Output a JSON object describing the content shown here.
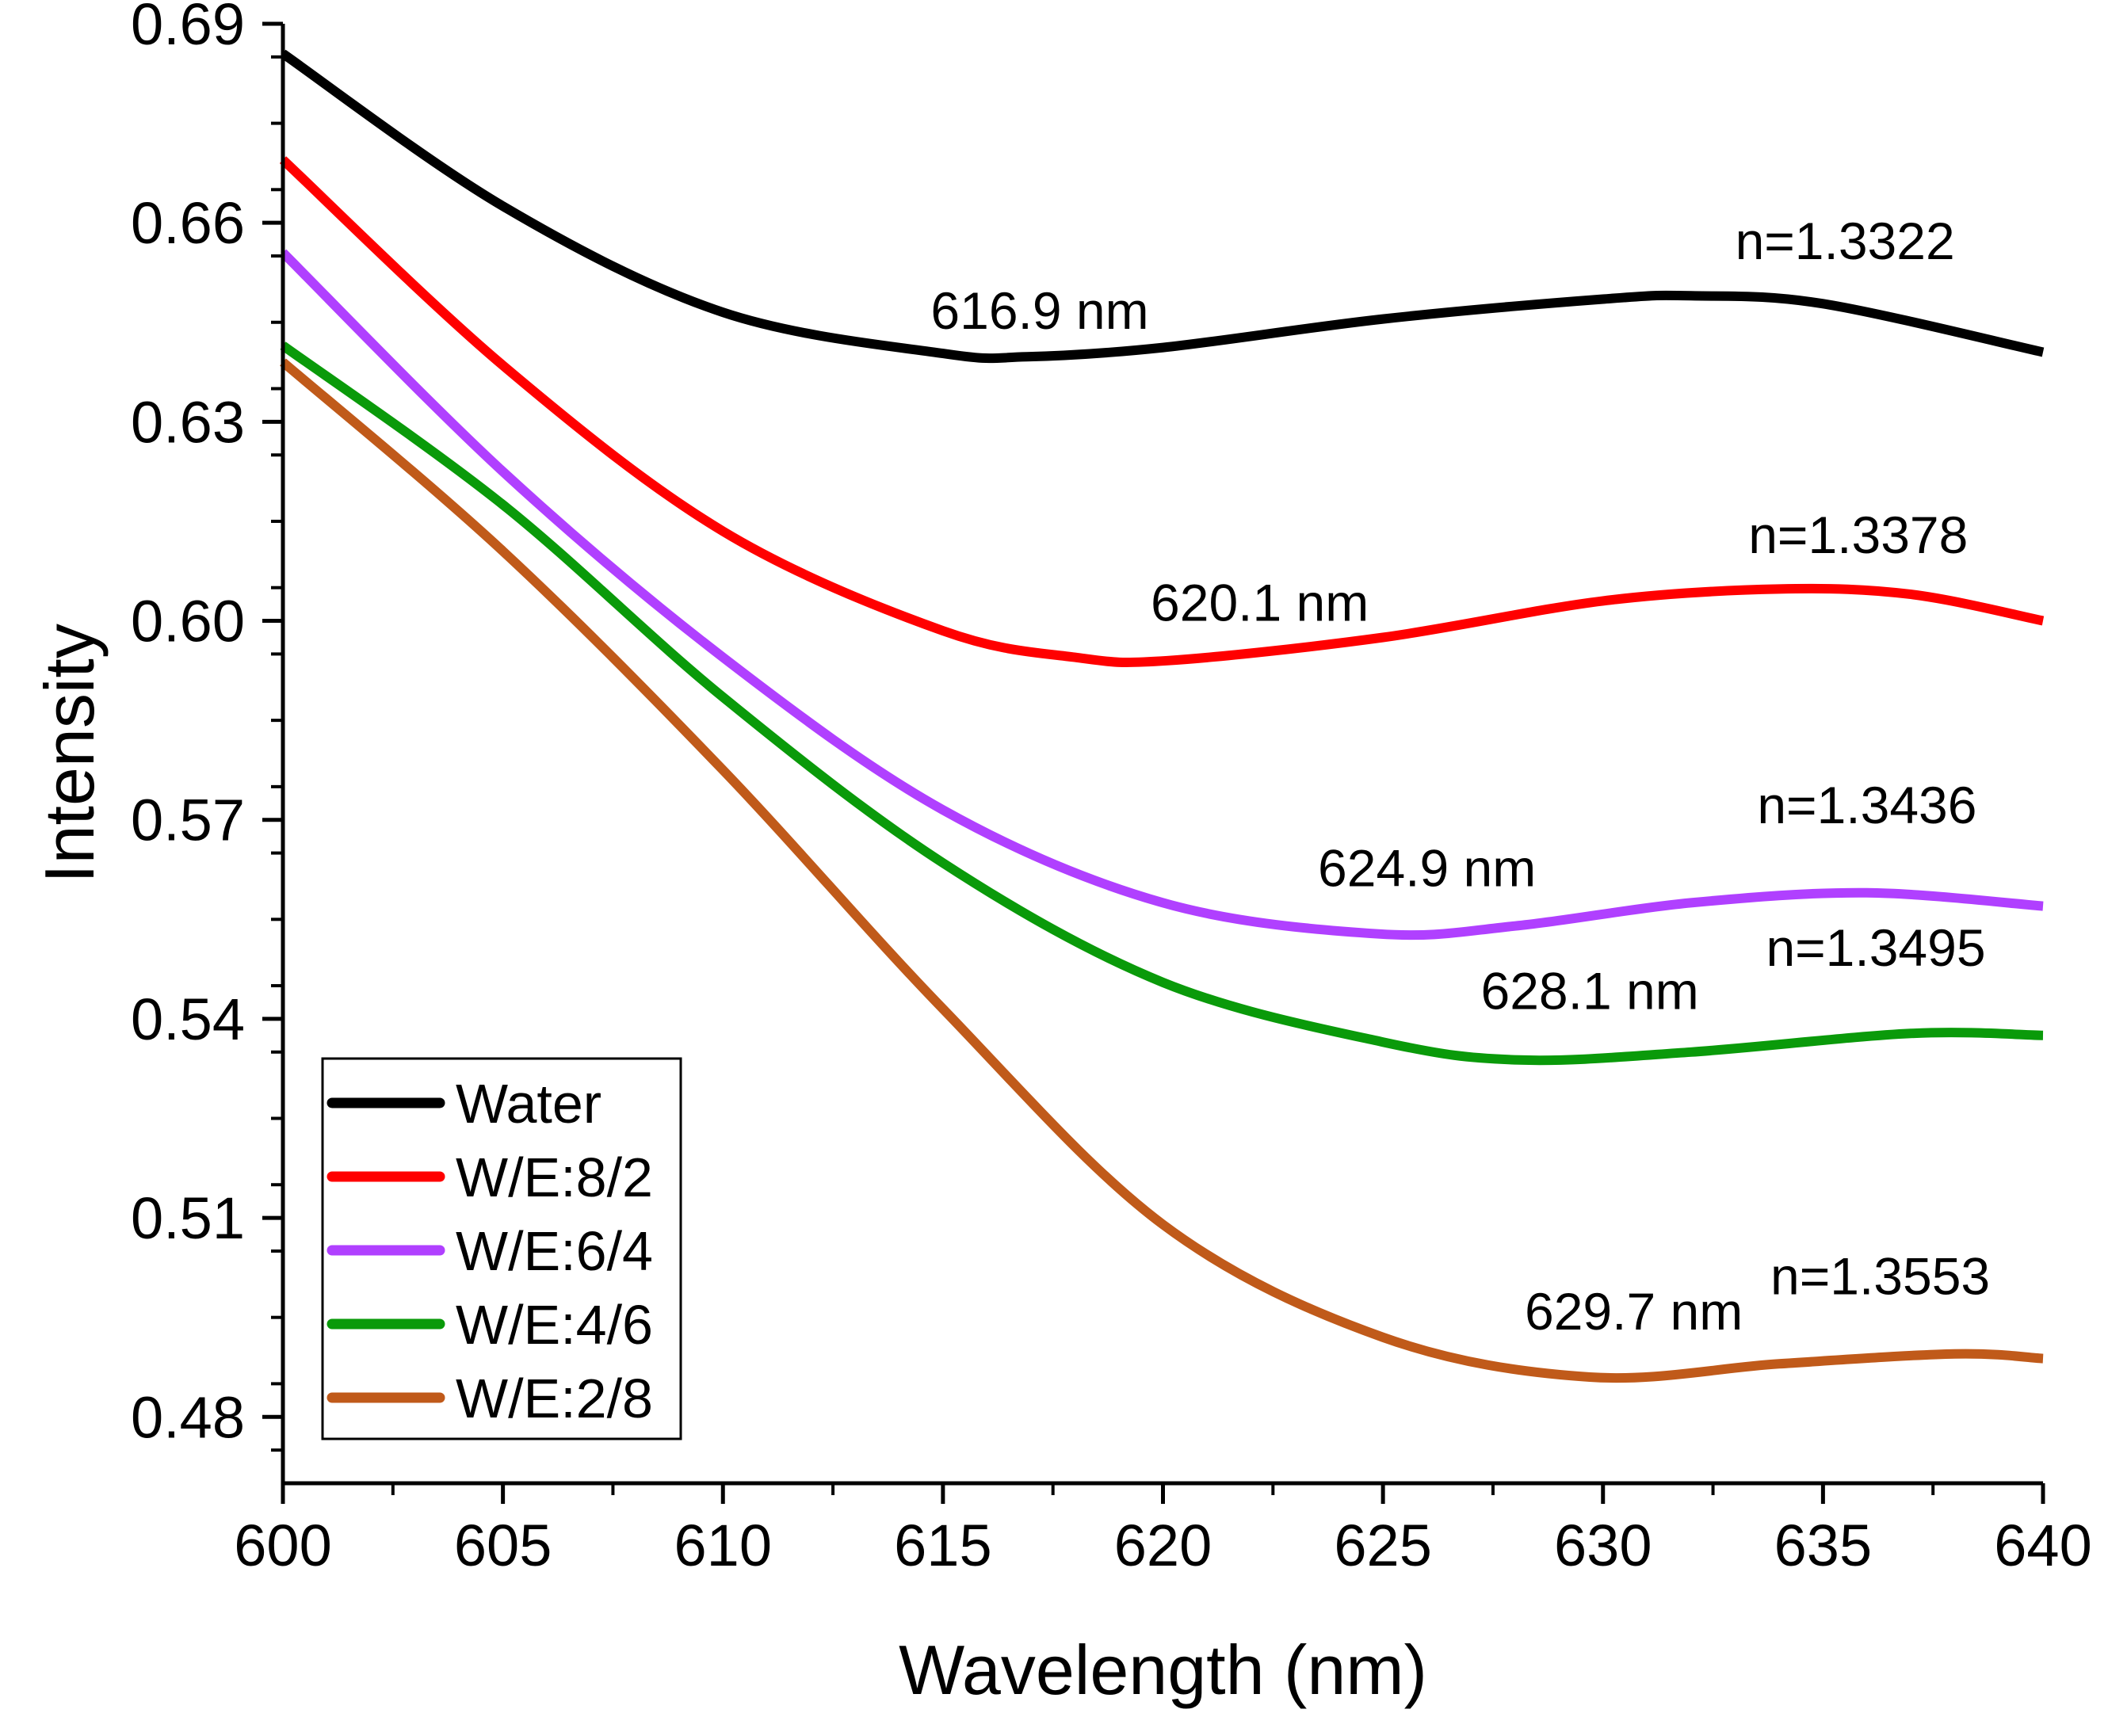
{
  "chart_data": {
    "type": "line",
    "title": "",
    "xlabel": "Wavelength (nm)",
    "ylabel": "Intensity",
    "xlim": [
      600,
      640
    ],
    "ylim": [
      0.47,
      0.69
    ],
    "xticks": [
      "600",
      "605",
      "610",
      "615",
      "620",
      "625",
      "630",
      "635",
      "640"
    ],
    "yticks": [
      "0.48",
      "0.51",
      "0.54",
      "0.57",
      "0.60",
      "0.63",
      "0.66",
      "0.69"
    ],
    "legend_position": "bottom-left",
    "series": [
      {
        "name": "Water",
        "color": "#000000",
        "x": [
          600,
          605,
          610,
          615,
          616.9,
          620,
          625,
          630,
          632,
          635,
          640
        ],
        "y": [
          0.6855,
          0.6625,
          0.6465,
          0.6403,
          0.6398,
          0.6412,
          0.6455,
          0.6485,
          0.649,
          0.6478,
          0.6405
        ]
      },
      {
        "name": "W/E:8/2",
        "color": "#ff0000",
        "x": [
          600,
          605,
          610,
          615,
          618,
          620.1,
          625,
          630,
          634,
          637,
          640
        ],
        "y": [
          0.6695,
          0.6385,
          0.6135,
          0.5985,
          0.5945,
          0.594,
          0.5975,
          0.603,
          0.6048,
          0.604,
          0.6
        ]
      },
      {
        "name": "W/E:6/4",
        "color": "#b040ff",
        "x": [
          600,
          605,
          610,
          615,
          620,
          624.9,
          628,
          632,
          636,
          640
        ],
        "y": [
          0.6555,
          0.6225,
          0.5945,
          0.5715,
          0.5575,
          0.5528,
          0.554,
          0.5575,
          0.559,
          0.557
        ]
      },
      {
        "name": "W/E:4/6",
        "color": "#0a9a0a",
        "x": [
          600,
          605,
          610,
          615,
          620,
          625,
          628.1,
          632,
          637,
          640
        ],
        "y": [
          0.6415,
          0.6175,
          0.5885,
          0.5635,
          0.5455,
          0.5365,
          0.5338,
          0.535,
          0.5378,
          0.5375
        ]
      },
      {
        "name": "W/E:2/8",
        "color": "#c05a1a",
        "x": [
          600,
          605,
          610,
          615,
          620,
          625,
          629.7,
          634,
          638,
          640
        ],
        "y": [
          0.639,
          0.6105,
          0.5775,
          0.5415,
          0.509,
          0.492,
          0.486,
          0.488,
          0.4895,
          0.4888
        ]
      }
    ],
    "annotations": [
      {
        "text": "616.9 nm",
        "x": 617.2,
        "y": 0.644
      },
      {
        "text": "n=1.3322",
        "x": 635.5,
        "y": 0.6545
      },
      {
        "text": "620.1 nm",
        "x": 622.2,
        "y": 0.6
      },
      {
        "text": "n=1.3378",
        "x": 635.8,
        "y": 0.6102
      },
      {
        "text": "624.9 nm",
        "x": 626.0,
        "y": 0.56
      },
      {
        "text": "n=1.3436",
        "x": 636.0,
        "y": 0.5695
      },
      {
        "text": "628.1 nm",
        "x": 629.7,
        "y": 0.5415
      },
      {
        "text": "n=1.3495",
        "x": 636.2,
        "y": 0.548
      },
      {
        "text": "629.7 nm",
        "x": 630.7,
        "y": 0.4932
      },
      {
        "text": "n=1.3553",
        "x": 636.3,
        "y": 0.4985
      }
    ]
  }
}
